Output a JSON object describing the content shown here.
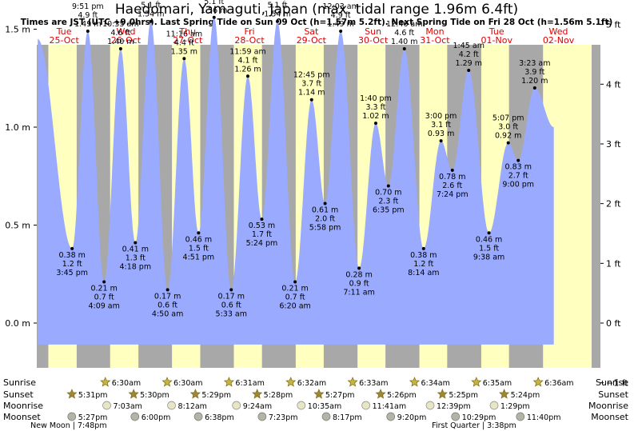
{
  "title": "Haedomari, Yamaguti, Japan (max. tidal range 1.96m 6.4ft)",
  "subtitle": "Times are JST (UTC +9.0hrs). Last Spring Tide on Sun 09 Oct (h=1.57m 5.2ft). Next Spring Tide on Fri 28 Oct (h=1.56m 5.1ft)",
  "colors": {
    "day_bg": "#ffffc0",
    "night_bg": "#a8a8a8",
    "water": "#99aaff",
    "day_label": "#e00000",
    "star_fill": "#c8b43c",
    "moon_fill": "#e6e6c4",
    "moon_set_fill": "#b4b4a4"
  },
  "days": [
    {
      "dow": "Tue",
      "date": "25-Oct"
    },
    {
      "dow": "Wed",
      "date": "26-Oct"
    },
    {
      "dow": "Thu",
      "date": "27-Oct"
    },
    {
      "dow": "Fri",
      "date": "28-Oct"
    },
    {
      "dow": "Sat",
      "date": "29-Oct"
    },
    {
      "dow": "Sun",
      "date": "30-Oct"
    },
    {
      "dow": "Mon",
      "date": "31-Oct"
    },
    {
      "dow": "Tue",
      "date": "01-Nov"
    },
    {
      "dow": "Wed",
      "date": "02-Nov"
    }
  ],
  "chart_data": {
    "type": "area",
    "title": "Haedomari, Yamaguti, Japan (max. tidal range 1.96m 6.4ft)",
    "x_unit": "days since 25-Oct 00:00 JST",
    "xlim": [
      0,
      8.5
    ],
    "ylim": [
      -0.2,
      1.8
    ],
    "y_left_label": "m",
    "y_right_label": "ft",
    "y_left_ticks": [
      "0.0 m",
      "0.5 m",
      "1.0 m",
      "1.5 m"
    ],
    "y_left_tick_values": [
      0,
      0.5,
      1.0,
      1.5
    ],
    "y_right_ticks": [
      "−1 ft",
      "0 ft",
      "1 ft",
      "2 ft",
      "3 ft",
      "4 ft",
      "5 ft",
      "6 ft"
    ],
    "y_right_tick_values": [
      -1,
      0,
      1,
      2,
      3,
      4,
      5,
      6
    ],
    "start_height_m": 1.45,
    "start_time_d": 0.1,
    "end_height_m": 1.0,
    "end_time_d": 8.45,
    "extremes": [
      {
        "kind": "low",
        "t": 0.656,
        "m": "0.38 m",
        "ft": "1.2 ft",
        "time": "3:45 pm",
        "h": 0.38
      },
      {
        "kind": "high",
        "t": 0.91,
        "m": "1.49 m",
        "ft": "4.9 ft",
        "time": "9:51 pm",
        "h": 1.49
      },
      {
        "kind": "low",
        "t": 1.173,
        "m": "0.21 m",
        "ft": "0.7 ft",
        "time": "4:09 am",
        "h": 0.21
      },
      {
        "kind": "high",
        "t": 1.441,
        "m": "1.40 m",
        "ft": "4.6 ft",
        "time": "10:35 am",
        "h": 1.4
      },
      {
        "kind": "low",
        "t": 1.679,
        "m": "0.41 m",
        "ft": "1.3 ft",
        "time": "4:18 pm",
        "h": 0.41
      },
      {
        "kind": "high",
        "t": 1.931,
        "m": "1.54 m",
        "ft": "5.1 ft",
        "time": "10:21 pm",
        "h": 1.54
      },
      {
        "kind": "low",
        "t": 2.201,
        "m": "0.17 m",
        "ft": "0.6 ft",
        "time": "4:50 am",
        "h": 0.17
      },
      {
        "kind": "high",
        "t": 2.469,
        "m": "1.35 m",
        "ft": "4.4 ft",
        "time": "11:16 am",
        "h": 1.35
      },
      {
        "kind": "low",
        "t": 2.702,
        "m": "0.46 m",
        "ft": "1.5 ft",
        "time": "4:51 pm",
        "h": 0.46
      },
      {
        "kind": "high",
        "t": 2.953,
        "m": "1.56 m",
        "ft": "5.1 ft",
        "time": "10:53 pm",
        "h": 1.56
      },
      {
        "kind": "low",
        "t": 3.231,
        "m": "0.17 m",
        "ft": "0.6 ft",
        "time": "5:33 am",
        "h": 0.17
      },
      {
        "kind": "high",
        "t": 3.499,
        "m": "1.26 m",
        "ft": "4.1 ft",
        "time": "11:59 am",
        "h": 1.26
      },
      {
        "kind": "low",
        "t": 3.725,
        "m": "0.53 m",
        "ft": "1.7 ft",
        "time": "5:24 pm",
        "h": 0.53
      },
      {
        "kind": "high",
        "t": 3.978,
        "m": "1.54 m",
        "ft": "5.1 ft",
        "time": "11:27 pm",
        "h": 1.54
      },
      {
        "kind": "low",
        "t": 4.264,
        "m": "0.21 m",
        "ft": "0.7 ft",
        "time": "6:20 am",
        "h": 0.21
      },
      {
        "kind": "high",
        "t": 4.531,
        "m": "1.14 m",
        "ft": "3.7 ft",
        "time": "12:45 pm",
        "h": 1.14
      },
      {
        "kind": "low",
        "t": 4.749,
        "m": "0.61 m",
        "ft": "2.0 ft",
        "time": "5:58 pm",
        "h": 0.61
      },
      {
        "kind": "high",
        "t": 5.002,
        "m": "1.49 m",
        "ft": "4.9 ft",
        "time": "12:03 am",
        "h": 1.49
      },
      {
        "kind": "low",
        "t": 5.299,
        "m": "0.28 m",
        "ft": "0.9 ft",
        "time": "7:11 am",
        "h": 0.28
      },
      {
        "kind": "high",
        "t": 5.569,
        "m": "1.02 m",
        "ft": "3.3 ft",
        "time": "1:40 pm",
        "h": 1.02
      },
      {
        "kind": "low",
        "t": 5.774,
        "m": "0.70 m",
        "ft": "2.3 ft",
        "time": "6:35 pm",
        "h": 0.7
      },
      {
        "kind": "high",
        "t": 6.032,
        "m": "1.40 m",
        "ft": "4.6 ft",
        "time": "12:46 am",
        "h": 1.4
      },
      {
        "kind": "low",
        "t": 6.343,
        "m": "0.38 m",
        "ft": "1.2 ft",
        "time": "8:14 am",
        "h": 0.38
      },
      {
        "kind": "high",
        "t": 6.625,
        "m": "0.93 m",
        "ft": "3.1 ft",
        "time": "3:00 pm",
        "h": 0.93
      },
      {
        "kind": "low",
        "t": 6.808,
        "m": "0.78 m",
        "ft": "2.6 ft",
        "time": "7:24 pm",
        "h": 0.78
      },
      {
        "kind": "high",
        "t": 7.073,
        "m": "1.29 m",
        "ft": "4.2 ft",
        "time": "1:45 am",
        "h": 1.29
      },
      {
        "kind": "low",
        "t": 7.401,
        "m": "0.46 m",
        "ft": "1.5 ft",
        "time": "9:38 am",
        "h": 0.46
      },
      {
        "kind": "high",
        "t": 7.713,
        "m": "0.92 m",
        "ft": "3.0 ft",
        "time": "5:07 pm",
        "h": 0.92
      },
      {
        "kind": "low",
        "t": 7.875,
        "m": "0.83 m",
        "ft": "2.7 ft",
        "time": "9:00 pm",
        "h": 0.83
      },
      {
        "kind": "high",
        "t": 8.141,
        "m": "1.20 m",
        "ft": "3.9 ft",
        "time": "3:23 am",
        "h": 1.2
      }
    ],
    "nights": [
      [
        -1,
        0.271
      ],
      [
        0.73,
        1.271
      ],
      [
        1.729,
        1.271
      ],
      [
        1.729,
        2.272
      ],
      [
        2.729,
        3.273
      ],
      [
        3.728,
        4.274
      ],
      [
        4.727,
        5.274
      ],
      [
        5.726,
        6.275
      ],
      [
        6.725,
        7.276
      ],
      [
        7.725,
        8.276
      ]
    ],
    "labels_row": [
      "Sunrise",
      "Sunset",
      "Moonrise",
      "Moonset"
    ],
    "sunrise": [
      {
        "t": 1.271,
        "time": "6:30am"
      },
      {
        "t": 2.271,
        "time": "6:30am"
      },
      {
        "t": 3.272,
        "time": "6:31am"
      },
      {
        "t": 4.272,
        "time": "6:32am"
      },
      {
        "t": 5.273,
        "time": "6:33am"
      },
      {
        "t": 6.274,
        "time": "6:34am"
      },
      {
        "t": 7.274,
        "time": "6:35am"
      },
      {
        "t": 8.275,
        "time": "6:36am"
      }
    ],
    "sunset": [
      {
        "t": 0.73,
        "time": "5:31pm"
      },
      {
        "t": 1.729,
        "time": "5:30pm"
      },
      {
        "t": 2.728,
        "time": "5:29pm"
      },
      {
        "t": 3.728,
        "time": "5:28pm"
      },
      {
        "t": 4.727,
        "time": "5:27pm"
      },
      {
        "t": 5.726,
        "time": "5:26pm"
      },
      {
        "t": 6.725,
        "time": "5:25pm"
      },
      {
        "t": 7.725,
        "time": "5:24pm"
      }
    ],
    "moonrise": [
      {
        "t": 1.294,
        "time": "7:03am"
      },
      {
        "t": 2.342,
        "time": "8:12am"
      },
      {
        "t": 3.392,
        "time": "9:24am"
      },
      {
        "t": 4.441,
        "time": "10:35am"
      },
      {
        "t": 5.487,
        "time": "11:41am"
      },
      {
        "t": 6.527,
        "time": "12:39pm"
      },
      {
        "t": 7.562,
        "time": "1:29pm"
      }
    ],
    "moonset": [
      {
        "t": 0.728,
        "time": "5:27pm"
      },
      {
        "t": 1.75,
        "time": "6:00pm"
      },
      {
        "t": 2.776,
        "time": "6:38pm"
      },
      {
        "t": 3.808,
        "time": "7:23pm"
      },
      {
        "t": 4.845,
        "time": "8:17pm"
      },
      {
        "t": 5.889,
        "time": "9:20pm"
      },
      {
        "t": 6.937,
        "time": "10:29pm"
      },
      {
        "t": 7.986,
        "time": "11:40pm"
      }
    ],
    "moon_phases": [
      {
        "t": 0.6,
        "label": "New Moon | 7:48pm"
      },
      {
        "t": 7.16,
        "label": "First Quarter | 3:38pm"
      }
    ]
  }
}
